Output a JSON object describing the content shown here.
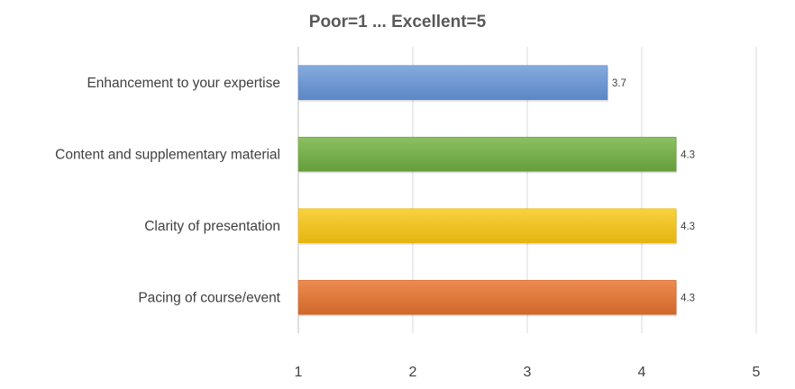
{
  "chart_data": {
    "type": "bar",
    "orientation": "horizontal",
    "title": "Poor=1 ... Excellent=5",
    "xlabel": "",
    "ylabel": "",
    "xlim": [
      1,
      5
    ],
    "ticks": [
      "1",
      "2",
      "3",
      "4",
      "5"
    ],
    "grid": true,
    "legend": "none",
    "categories": [
      "Enhancement to your expertise",
      "Content and supplementary material",
      "Clarity of presentation",
      "Pacing of course/event"
    ],
    "values": [
      3.7,
      4.3,
      4.3,
      4.3
    ],
    "data_labels": [
      "3.7",
      "4.3",
      "4.3",
      "4.3"
    ],
    "colors": [
      {
        "light": "#86aadd",
        "dark": "#5b87c5"
      },
      {
        "light": "#8cc060",
        "dark": "#659e3d"
      },
      {
        "light": "#f8d23f",
        "dark": "#e5b410"
      },
      {
        "light": "#ec8c4f",
        "dark": "#d0672a"
      }
    ]
  }
}
